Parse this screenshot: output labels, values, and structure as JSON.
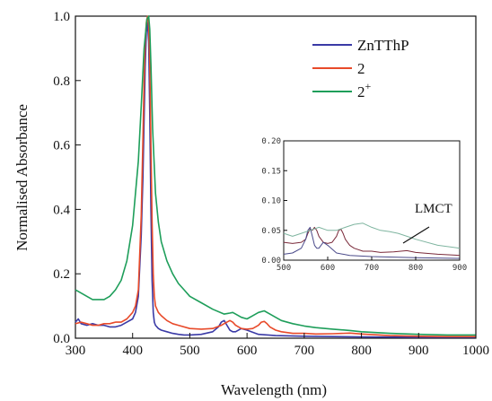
{
  "chart_data": [
    {
      "type": "line",
      "xlabel": "Wavelength (nm)",
      "ylabel": "Normalised Absorbance",
      "xlim": [
        300,
        1000
      ],
      "ylim": [
        0.0,
        1.0
      ],
      "xticks": [
        300,
        400,
        500,
        600,
        700,
        800,
        900,
        1000
      ],
      "xtick_labels": [
        "300",
        "400",
        "500",
        "600",
        "700",
        "800",
        "900",
        "1000"
      ],
      "yticks": [
        0.0,
        0.2,
        0.4,
        0.6,
        0.8,
        1.0
      ],
      "ytick_labels": [
        "0.0",
        "0.2",
        "0.4",
        "0.6",
        "0.8",
        "1.0"
      ],
      "grid": false,
      "legend_position": "top-right",
      "series": [
        {
          "name": "ZnTThP",
          "color": "#3a3aa6",
          "x": [
            300,
            305,
            310,
            320,
            330,
            340,
            350,
            360,
            370,
            380,
            390,
            400,
            405,
            410,
            415,
            418,
            420,
            422,
            424,
            426,
            428,
            430,
            432,
            434,
            436,
            438,
            440,
            445,
            450,
            460,
            470,
            480,
            490,
            500,
            520,
            540,
            550,
            555,
            560,
            565,
            570,
            575,
            580,
            590,
            600,
            620,
            650,
            700,
            800,
            900,
            1000
          ],
          "y": [
            0.05,
            0.06,
            0.045,
            0.04,
            0.045,
            0.04,
            0.04,
            0.035,
            0.035,
            0.04,
            0.05,
            0.06,
            0.08,
            0.13,
            0.32,
            0.5,
            0.68,
            0.84,
            0.95,
            0.98,
            0.92,
            0.7,
            0.4,
            0.18,
            0.08,
            0.05,
            0.04,
            0.03,
            0.025,
            0.02,
            0.015,
            0.012,
            0.01,
            0.01,
            0.012,
            0.02,
            0.035,
            0.05,
            0.055,
            0.04,
            0.025,
            0.02,
            0.02,
            0.03,
            0.025,
            0.012,
            0.008,
            0.006,
            0.004,
            0.003,
            0.003
          ]
        },
        {
          "name": "2",
          "color": "#e84a2a",
          "x": [
            300,
            310,
            320,
            330,
            340,
            350,
            360,
            370,
            380,
            390,
            400,
            405,
            410,
            415,
            418,
            420,
            422,
            424,
            426,
            428,
            430,
            432,
            434,
            436,
            438,
            440,
            445,
            450,
            460,
            470,
            480,
            500,
            520,
            540,
            555,
            565,
            570,
            575,
            580,
            590,
            600,
            610,
            620,
            625,
            630,
            635,
            640,
            650,
            660,
            680,
            700,
            720,
            750,
            780,
            800,
            850,
            900,
            950,
            1000
          ],
          "y": [
            0.045,
            0.05,
            0.045,
            0.04,
            0.04,
            0.045,
            0.045,
            0.05,
            0.05,
            0.06,
            0.08,
            0.1,
            0.15,
            0.38,
            0.62,
            0.8,
            0.92,
            0.98,
            1.0,
            0.97,
            0.85,
            0.6,
            0.36,
            0.2,
            0.13,
            0.1,
            0.08,
            0.07,
            0.055,
            0.045,
            0.04,
            0.03,
            0.028,
            0.03,
            0.04,
            0.05,
            0.055,
            0.05,
            0.04,
            0.03,
            0.028,
            0.03,
            0.04,
            0.05,
            0.052,
            0.045,
            0.035,
            0.025,
            0.02,
            0.015,
            0.015,
            0.013,
            0.014,
            0.016,
            0.013,
            0.008,
            0.006,
            0.005,
            0.005
          ]
        },
        {
          "name": "2+",
          "color": "#1e9e5a",
          "x": [
            300,
            310,
            320,
            330,
            340,
            350,
            360,
            370,
            380,
            390,
            400,
            410,
            415,
            420,
            425,
            428,
            430,
            432,
            435,
            440,
            445,
            450,
            460,
            470,
            480,
            490,
            500,
            520,
            540,
            560,
            570,
            575,
            580,
            590,
            600,
            610,
            620,
            630,
            640,
            650,
            660,
            680,
            700,
            720,
            750,
            780,
            800,
            850,
            900,
            950,
            1000
          ],
          "y": [
            0.15,
            0.14,
            0.13,
            0.12,
            0.12,
            0.12,
            0.13,
            0.15,
            0.18,
            0.24,
            0.35,
            0.55,
            0.72,
            0.9,
            0.99,
            1.0,
            0.96,
            0.85,
            0.65,
            0.45,
            0.36,
            0.3,
            0.24,
            0.2,
            0.17,
            0.15,
            0.13,
            0.11,
            0.09,
            0.075,
            0.078,
            0.08,
            0.075,
            0.065,
            0.06,
            0.07,
            0.08,
            0.085,
            0.075,
            0.065,
            0.055,
            0.045,
            0.038,
            0.033,
            0.028,
            0.024,
            0.02,
            0.015,
            0.012,
            0.01,
            0.01
          ]
        }
      ]
    },
    {
      "type": "line",
      "role": "inset",
      "xlim": [
        500,
        900
      ],
      "ylim": [
        0.0,
        0.2
      ],
      "xticks": [
        500,
        600,
        700,
        800,
        900
      ],
      "xtick_labels": [
        "500",
        "600",
        "700",
        "800",
        "900"
      ],
      "yticks": [
        0.0,
        0.05,
        0.1,
        0.15,
        0.2
      ],
      "ytick_labels": [
        "0.00",
        "0.05",
        "0.10",
        "0.15",
        "0.20"
      ],
      "annotation": "LMCT",
      "series": [
        {
          "color": "#7a2a3a",
          "x": [
            500,
            520,
            540,
            550,
            555,
            560,
            565,
            570,
            575,
            580,
            590,
            600,
            610,
            620,
            625,
            630,
            635,
            640,
            650,
            660,
            680,
            700,
            720,
            750,
            780,
            800,
            850,
            900
          ],
          "y": [
            0.03,
            0.028,
            0.03,
            0.035,
            0.045,
            0.052,
            0.05,
            0.055,
            0.05,
            0.04,
            0.03,
            0.028,
            0.03,
            0.04,
            0.05,
            0.052,
            0.045,
            0.035,
            0.025,
            0.02,
            0.015,
            0.015,
            0.013,
            0.014,
            0.016,
            0.013,
            0.01,
            0.008
          ]
        },
        {
          "color": "#4a4a8a",
          "x": [
            500,
            520,
            540,
            550,
            555,
            560,
            565,
            570,
            575,
            580,
            590,
            600,
            620,
            650,
            700,
            800,
            900
          ],
          "y": [
            0.01,
            0.012,
            0.02,
            0.035,
            0.05,
            0.055,
            0.04,
            0.025,
            0.02,
            0.02,
            0.03,
            0.025,
            0.012,
            0.008,
            0.006,
            0.004,
            0.003
          ]
        },
        {
          "color": "#7fb5a0",
          "x": [
            500,
            520,
            540,
            560,
            580,
            600,
            620,
            640,
            660,
            680,
            700,
            720,
            740,
            760,
            780,
            800,
            850,
            900
          ],
          "y": [
            0.045,
            0.04,
            0.045,
            0.05,
            0.055,
            0.05,
            0.05,
            0.055,
            0.06,
            0.062,
            0.055,
            0.05,
            0.048,
            0.045,
            0.04,
            0.035,
            0.025,
            0.02
          ]
        }
      ]
    }
  ],
  "legend": {
    "items": [
      {
        "label": "ZnTThP",
        "color": "#3a3aa6"
      },
      {
        "label": "2",
        "color": "#e84a2a"
      },
      {
        "label": "2",
        "sup": "+",
        "color": "#1e9e5a"
      }
    ]
  }
}
